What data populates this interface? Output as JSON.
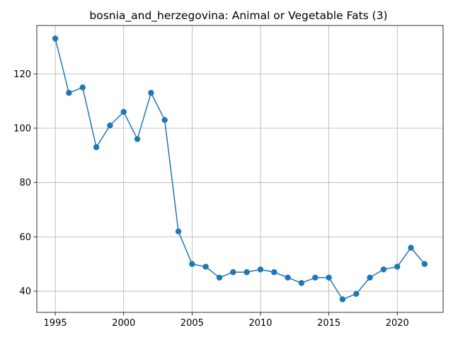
{
  "chart_data": {
    "type": "line",
    "title": "bosnia_and_herzegovina: Animal or Vegetable Fats (3)",
    "xlabel": "",
    "ylabel": "",
    "x": [
      1995,
      1996,
      1997,
      1998,
      1999,
      2000,
      2001,
      2002,
      2003,
      2004,
      2005,
      2006,
      2007,
      2008,
      2009,
      2010,
      2011,
      2012,
      2013,
      2014,
      2015,
      2016,
      2017,
      2018,
      2019,
      2020,
      2021,
      2022
    ],
    "series": [
      {
        "values": [
          133,
          113,
          115,
          93,
          101,
          106,
          96,
          113,
          103,
          62,
          50,
          49,
          45,
          47,
          47,
          48,
          47,
          45,
          43,
          45,
          45,
          37,
          39,
          45,
          48,
          49,
          56,
          50
        ]
      }
    ],
    "xlim": [
      1993.65,
      2023.35
    ],
    "ylim": [
      32.2,
      137.8
    ],
    "xticks": [
      1995,
      2000,
      2005,
      2010,
      2015,
      2020
    ],
    "yticks": [
      40,
      60,
      80,
      100,
      120
    ],
    "grid": true,
    "colors": {
      "line": "#1f77b4",
      "grid": "#b0b0b0",
      "axis": "#000000"
    }
  }
}
